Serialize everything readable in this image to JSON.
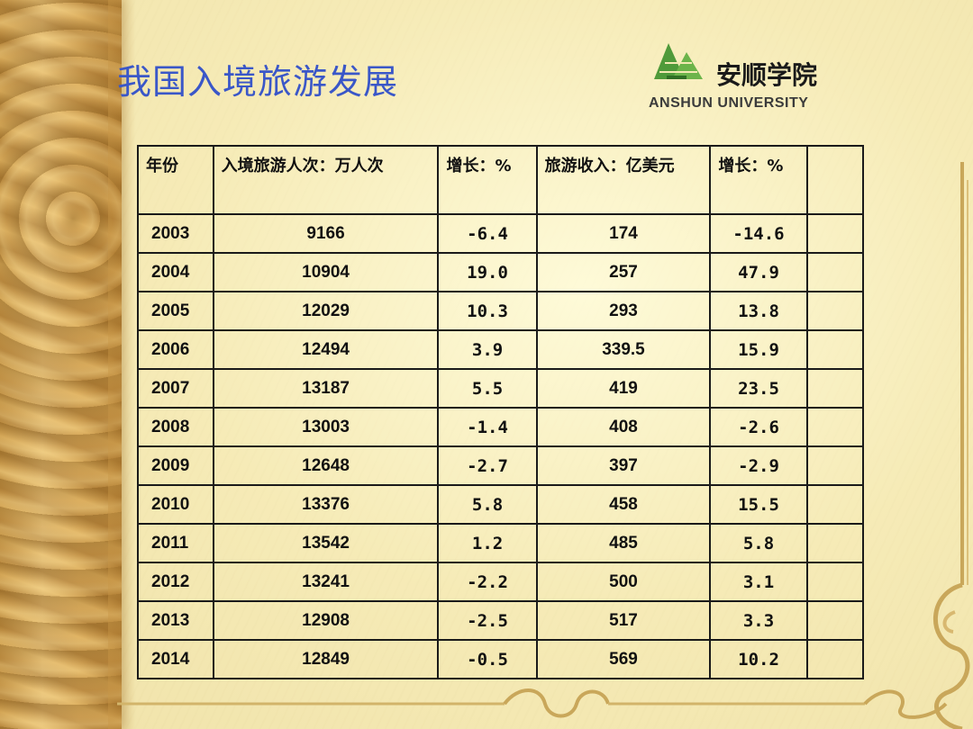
{
  "slide": {
    "title": "我国入境旅游发展",
    "logo": {
      "name": "安顺学院",
      "english": "ANSHUN UNIVERSITY"
    }
  },
  "table": {
    "headers": [
      "年份",
      "入境旅游人次：万人次",
      "增长：%",
      "旅游收入：亿美元",
      "增长：%",
      ""
    ],
    "rows": [
      [
        "2003",
        "9166",
        "-6.4",
        "174",
        "-14.6",
        ""
      ],
      [
        "2004",
        "10904",
        "19.0",
        "257",
        "47.9",
        ""
      ],
      [
        "2005",
        "12029",
        "10.3",
        "293",
        "13.8",
        ""
      ],
      [
        "2006",
        "12494",
        "3.9",
        "339.5",
        "15.9",
        ""
      ],
      [
        "2007",
        "13187",
        "5.5",
        "419",
        "23.5",
        ""
      ],
      [
        "2008",
        "13003",
        "-1.4",
        "408",
        "-2.6",
        ""
      ],
      [
        "2009",
        "12648",
        "-2.7",
        "397",
        "-2.9",
        ""
      ],
      [
        "2010",
        "13376",
        "5.8",
        "458",
        "15.5",
        ""
      ],
      [
        "2011",
        "13542",
        "1.2",
        "485",
        "5.8",
        ""
      ],
      [
        "2012",
        "13241",
        "-2.2",
        "500",
        "3.1",
        ""
      ],
      [
        "2013",
        "12908",
        "-2.5",
        "517",
        "3.3",
        ""
      ],
      [
        "2014",
        "12849",
        "-0.5",
        "569",
        "10.2",
        ""
      ]
    ]
  },
  "colors": {
    "title": "#3a57c8",
    "logo_green": "#4f9a3a",
    "border": "#1a1a1a"
  },
  "icons": [
    "anshun-university-logo-icon"
  ]
}
